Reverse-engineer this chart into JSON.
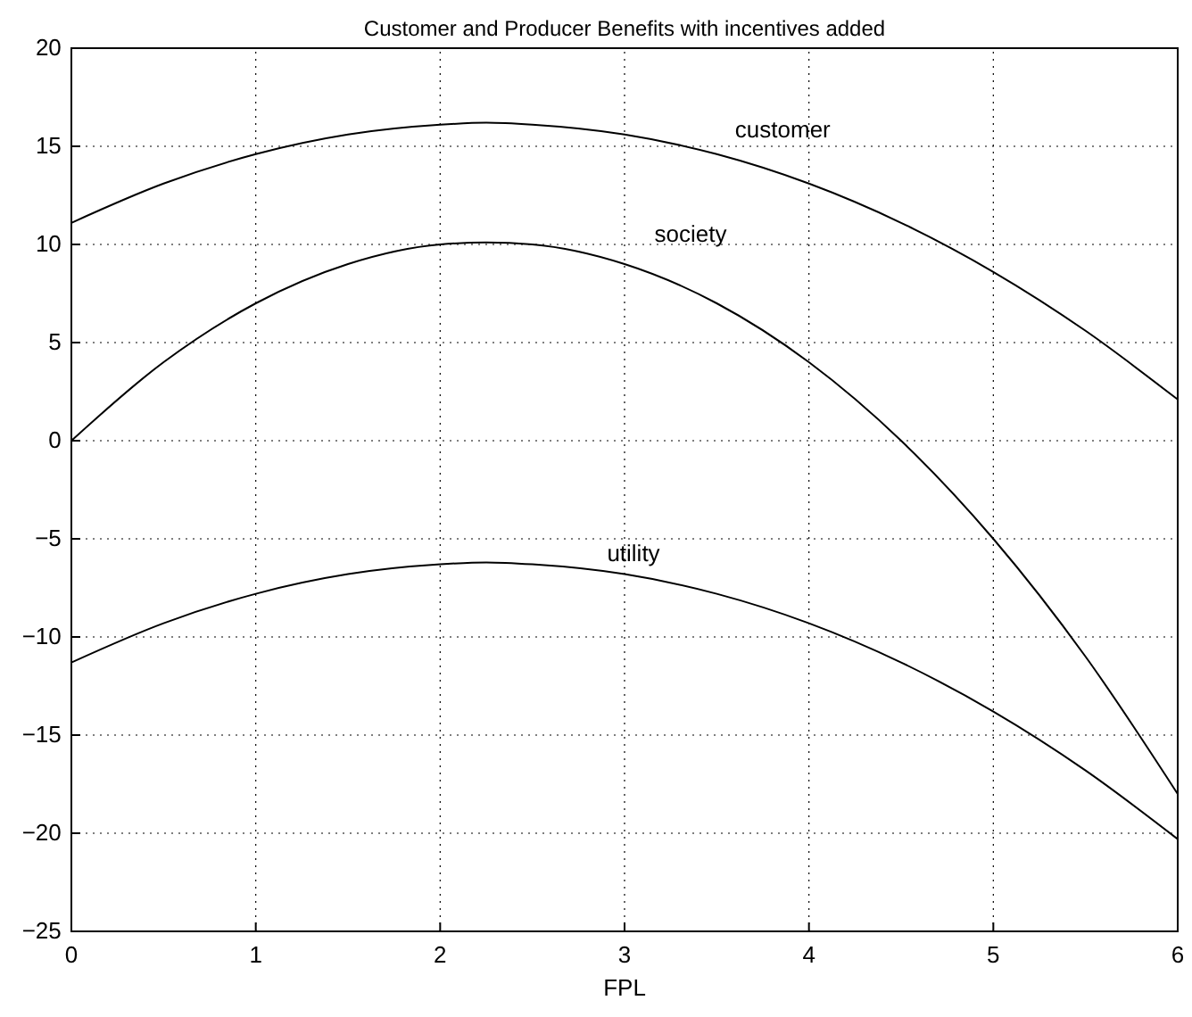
{
  "chart_data": {
    "type": "line",
    "title": "Customer and Producer Benefits with incentives added",
    "xlabel": "FPL",
    "x": [
      0,
      0.5,
      1,
      1.5,
      2,
      2.25,
      2.5,
      3,
      3.5,
      4,
      4.5,
      5,
      5.5,
      6
    ],
    "series": [
      {
        "name": "customer",
        "color": "#000000",
        "values": [
          11.1,
          13.1,
          14.6,
          15.6,
          16.1,
          16.2,
          16.1,
          15.6,
          14.6,
          13.1,
          11.1,
          8.6,
          5.6,
          2.1
        ]
      },
      {
        "name": "society",
        "color": "#000000",
        "values": [
          0,
          4.0,
          7.0,
          9.0,
          10.0,
          10.1,
          10.0,
          9.0,
          7.0,
          4.0,
          0,
          -5.0,
          -11.0,
          -18.0
        ]
      },
      {
        "name": "utility",
        "color": "#000000",
        "values": [
          -11.3,
          -9.3,
          -7.8,
          -6.8,
          -6.3,
          -6.2,
          -6.3,
          -6.8,
          -7.8,
          -9.3,
          -11.3,
          -13.8,
          -16.8,
          -20.3
        ]
      }
    ],
    "xlim": [
      0,
      6
    ],
    "ylim": [
      -25,
      20
    ],
    "xticks": [
      0,
      1,
      2,
      3,
      4,
      5,
      6
    ],
    "yticks": [
      -25,
      -20,
      -15,
      -10,
      -5,
      0,
      5,
      10,
      15,
      20
    ],
    "grid": true,
    "marker": "none",
    "line_style": "solid"
  }
}
